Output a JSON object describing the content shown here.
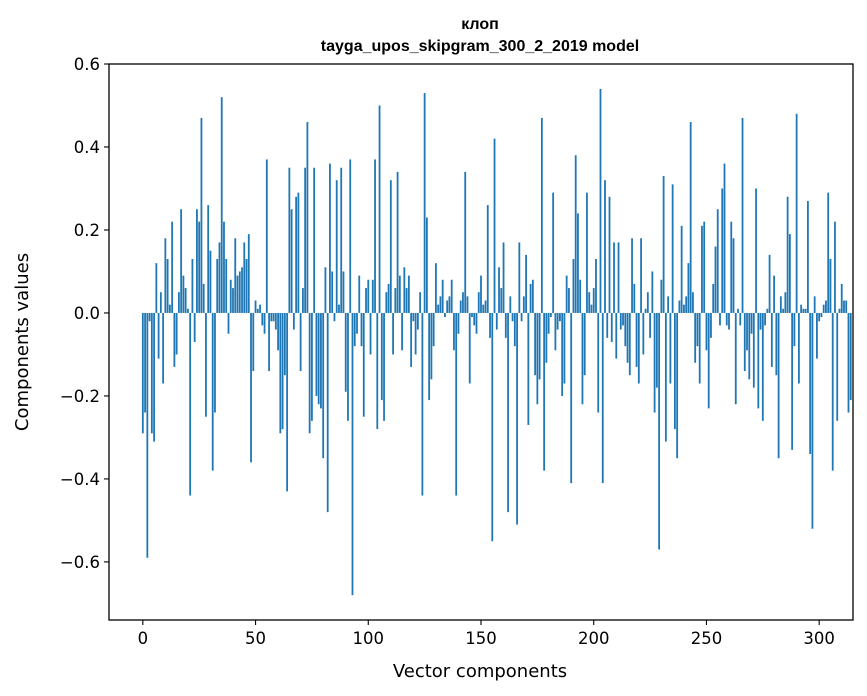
{
  "chart_data": {
    "type": "bar",
    "title_line1": "клоп",
    "title_line2": "tayga_upos_skipgram_300_2_2019 model",
    "xlabel": "Vector components",
    "ylabel": "Components values",
    "xlim": [
      -15,
      315
    ],
    "ylim": [
      -0.74,
      0.6
    ],
    "x_ticks": [
      0,
      50,
      100,
      150,
      200,
      250,
      300
    ],
    "x_tick_labels": [
      "0",
      "50",
      "100",
      "150",
      "200",
      "250",
      "300"
    ],
    "y_ticks": [
      -0.6,
      -0.4,
      -0.2,
      0.0,
      0.2,
      0.4,
      0.6
    ],
    "y_tick_labels": [
      "−0.6",
      "−0.4",
      "−0.2",
      "0.0",
      "0.2",
      "0.4",
      "0.6"
    ],
    "bar_color": "#1f77b4",
    "values": [
      -0.29,
      -0.24,
      -0.59,
      -0.02,
      -0.29,
      -0.31,
      0.12,
      -0.11,
      0.05,
      -0.17,
      0.18,
      0.13,
      0.02,
      0.22,
      -0.13,
      -0.1,
      0.05,
      0.25,
      0.09,
      0.06,
      0.01,
      -0.44,
      0.13,
      -0.07,
      0.25,
      0.22,
      0.47,
      0.07,
      -0.25,
      0.26,
      0.15,
      -0.38,
      -0.24,
      0.13,
      0.17,
      0.52,
      0.22,
      0.13,
      -0.05,
      0.08,
      0.06,
      0.18,
      0.09,
      0.1,
      0.11,
      0.17,
      0.13,
      0.19,
      -0.36,
      -0.14,
      0.03,
      0.01,
      0.02,
      -0.03,
      -0.05,
      0.37,
      -0.14,
      -0.02,
      -0.02,
      -0.04,
      -0.09,
      -0.29,
      -0.28,
      -0.15,
      -0.43,
      0.35,
      0.25,
      -0.04,
      0.28,
      0.29,
      -0.14,
      0.06,
      0.35,
      0.46,
      -0.29,
      -0.26,
      0.35,
      -0.2,
      -0.22,
      -0.23,
      -0.35,
      0.11,
      -0.48,
      0.36,
      0.1,
      -0.02,
      0.32,
      0.02,
      0.35,
      0.1,
      -0.19,
      -0.26,
      0.37,
      -0.68,
      -0.08,
      -0.05,
      0.09,
      -0.08,
      -0.25,
      0.06,
      0.08,
      -0.1,
      0.08,
      0.37,
      -0.28,
      0.5,
      -0.21,
      -0.26,
      0.05,
      0.07,
      0.32,
      -0.1,
      0.06,
      0.34,
      0.09,
      -0.09,
      0.11,
      0.06,
      0.09,
      -0.13,
      -0.02,
      -0.1,
      -0.04,
      0.05,
      -0.44,
      0.53,
      0.23,
      -0.21,
      -0.16,
      -0.08,
      0.12,
      0.02,
      0.04,
      0.08,
      -0.01,
      0.03,
      0.04,
      0.08,
      -0.09,
      -0.44,
      -0.05,
      0.03,
      0.05,
      0.34,
      0.04,
      -0.17,
      -0.01,
      -0.03,
      -0.05,
      0.05,
      0.09,
      0.02,
      0.03,
      0.26,
      -0.06,
      -0.55,
      0.42,
      -0.04,
      0.11,
      0.06,
      0.17,
      -0.06,
      -0.48,
      0.04,
      -0.02,
      -0.08,
      -0.51,
      0.17,
      -0.02,
      0.04,
      0.14,
      -0.27,
      0.07,
      0.08,
      -0.15,
      -0.22,
      -0.16,
      0.47,
      -0.38,
      -0.12,
      -0.05,
      -0.01,
      0.29,
      -0.09,
      -0.04,
      -0.02,
      -0.2,
      -0.17,
      0.09,
      0.06,
      -0.41,
      0.13,
      0.38,
      0.24,
      0.08,
      -0.22,
      -0.15,
      0.29,
      0.05,
      0.02,
      0.06,
      0.13,
      -0.24,
      0.54,
      -0.41,
      0.32,
      -0.06,
      0.28,
      -0.07,
      0.17,
      -0.11,
      0.17,
      -0.04,
      -0.03,
      -0.08,
      -0.12,
      -0.15,
      0.18,
      0.07,
      -0.13,
      -0.17,
      0.18,
      -0.1,
      0.01,
      0.05,
      -0.06,
      0.1,
      -0.24,
      -0.18,
      -0.57,
      0.08,
      0.33,
      -0.31,
      0.04,
      -0.17,
      0.31,
      -0.28,
      -0.35,
      0.03,
      0.21,
      0.02,
      0.04,
      0.12,
      0.46,
      0.05,
      -0.12,
      -0.08,
      -0.17,
      0.21,
      0.22,
      -0.09,
      -0.23,
      -0.06,
      0.07,
      0.16,
      0.25,
      -0.03,
      0.3,
      0.36,
      -0.03,
      -0.04,
      0.22,
      0.18,
      -0.22,
      0.01,
      -0.03,
      0.47,
      -0.14,
      -0.09,
      -0.16,
      -0.05,
      -0.18,
      0.3,
      -0.23,
      -0.04,
      -0.26,
      -0.03,
      0.01,
      0.14,
      -0.13,
      0.09,
      -0.15,
      -0.35,
      0.04,
      0.01,
      0.05,
      0.28,
      0.19,
      -0.33,
      -0.08,
      0.48,
      -0.17,
      0.02,
      0.01,
      0.01,
      0.27,
      -0.34,
      -0.52,
      0.04,
      -0.11,
      -0.02,
      -0.01,
      0.02,
      0.03,
      0.29,
      0.13,
      -0.38,
      0.22,
      -0.26,
      0.01,
      0.07,
      0.03,
      0.03,
      -0.24,
      -0.21
    ]
  }
}
